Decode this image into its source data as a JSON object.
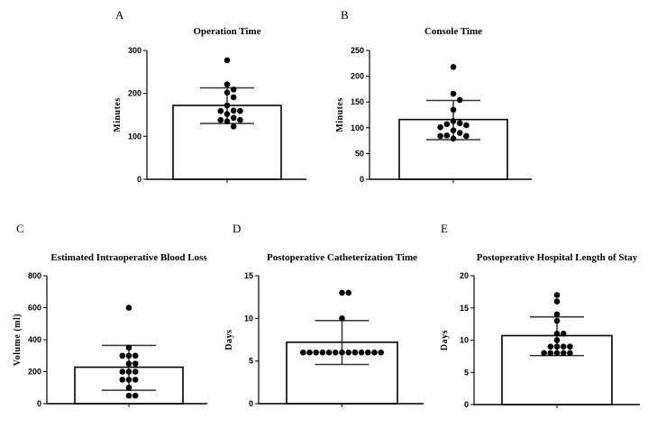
{
  "chart_data": [
    {
      "panel": "A",
      "type": "bar",
      "title": "Operation Time",
      "ylabel": "Minutes",
      "ylim": [
        0,
        300
      ],
      "yticks": [
        0,
        100,
        200,
        300
      ],
      "grid": false,
      "mean": 172,
      "sd_upper": 213,
      "sd_lower": 130,
      "points": [
        277,
        221,
        209,
        202,
        191,
        172,
        160,
        159,
        159,
        152,
        143,
        138,
        138,
        135,
        123
      ]
    },
    {
      "panel": "B",
      "type": "bar",
      "title": "Console Time",
      "ylabel": "Minutes",
      "ylim": [
        0,
        250
      ],
      "yticks": [
        0,
        50,
        100,
        150,
        200,
        250
      ],
      "grid": false,
      "mean": 116,
      "sd_upper": 153,
      "sd_lower": 77,
      "points": [
        218,
        166,
        154,
        135,
        113,
        109,
        107,
        105,
        101,
        95,
        90,
        85,
        84,
        84,
        79
      ]
    },
    {
      "panel": "C",
      "type": "bar",
      "title": "Estimated Intraoperative Blood Loss",
      "ylabel": "Volume (ml)",
      "ylim": [
        0,
        800
      ],
      "yticks": [
        0,
        200,
        400,
        600,
        800
      ],
      "grid": false,
      "mean": 228,
      "sd_upper": 364,
      "sd_lower": 84,
      "points": [
        600,
        350,
        300,
        300,
        300,
        250,
        250,
        200,
        200,
        200,
        150,
        150,
        150,
        100,
        50,
        50
      ]
    },
    {
      "panel": "D",
      "type": "bar",
      "title": "Postoperative Catheterization Time",
      "ylabel": "Days",
      "ylim": [
        0,
        15
      ],
      "yticks": [
        0,
        5,
        10,
        15
      ],
      "grid": false,
      "mean": 7.2,
      "sd_upper": 9.75,
      "sd_lower": 4.6,
      "points": [
        13,
        13,
        10,
        6,
        6,
        6,
        6,
        6,
        6,
        6,
        6,
        6,
        6,
        6,
        6,
        6
      ]
    },
    {
      "panel": "E",
      "type": "bar",
      "title": "Postoperative Hospital Length of Stay",
      "ylabel": "Days",
      "ylim": [
        0,
        20
      ],
      "yticks": [
        0,
        5,
        10,
        15,
        20
      ],
      "grid": false,
      "mean": 10.7,
      "sd_upper": 13.6,
      "sd_lower": 7.6,
      "points": [
        17,
        16,
        14,
        13,
        11,
        11,
        10,
        9,
        9,
        9,
        9,
        8,
        8,
        8,
        8,
        8
      ]
    }
  ]
}
